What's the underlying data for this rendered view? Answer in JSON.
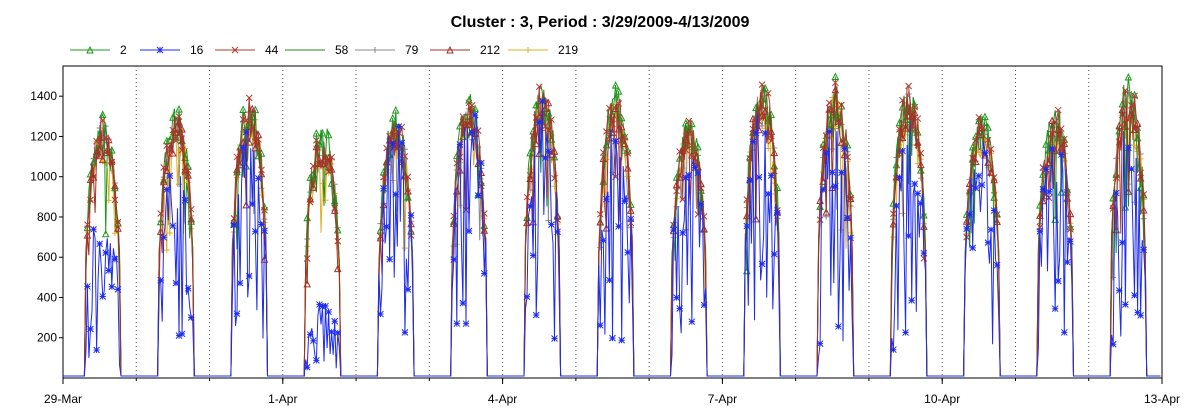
{
  "chart_data": {
    "type": "line",
    "title": "Cluster : 3, Period : 3/29/2009-4/13/2009",
    "xlabel": "",
    "ylabel": "",
    "ylim": [
      0,
      1550
    ],
    "yticks": [
      200,
      400,
      600,
      800,
      1000,
      1200,
      1400
    ],
    "xticks": [
      "29-Mar",
      "1-Apr",
      "4-Apr",
      "7-Apr",
      "10-Apr",
      "13-Apr"
    ],
    "x_range_days": [
      0,
      15
    ],
    "legend_position": "top",
    "grid": "vertical dotted at day boundaries",
    "daily_peaks": [
      {
        "day": "29-Mar",
        "peak": 1330,
        "low_series_peak": 880
      },
      {
        "day": "30-Mar",
        "peak": 1380,
        "low_series_peak": 1120
      },
      {
        "day": "31-Mar",
        "peak": 1430,
        "low_series_peak": 1260
      },
      {
        "day": "1-Apr",
        "peak": 1280,
        "low_series_peak": 400
      },
      {
        "day": "2-Apr",
        "peak": 1340,
        "low_series_peak": 1320
      },
      {
        "day": "3-Apr",
        "peak": 1420,
        "low_series_peak": 1430
      },
      {
        "day": "4-Apr",
        "peak": 1500,
        "low_series_peak": 1400
      },
      {
        "day": "5-Apr",
        "peak": 1460,
        "low_series_peak": 1300
      },
      {
        "day": "6-Apr",
        "peak": 1320,
        "low_series_peak": 1200
      },
      {
        "day": "7-Apr",
        "peak": 1520,
        "low_series_peak": 1350
      },
      {
        "day": "8-Apr",
        "peak": 1500,
        "low_series_peak": 1300
      },
      {
        "day": "9-Apr",
        "peak": 1480,
        "low_series_peak": 1300
      },
      {
        "day": "10-Apr",
        "peak": 1340,
        "low_series_peak": 1200
      },
      {
        "day": "11-Apr",
        "peak": 1380,
        "low_series_peak": 1250
      },
      {
        "day": "12-Apr",
        "peak": 1500,
        "low_series_peak": 1280
      }
    ],
    "series": [
      {
        "name": "2",
        "color": "#1a9a1a",
        "marker": "triangle"
      },
      {
        "name": "16",
        "color": "#1e2cf0",
        "marker": "asterisk"
      },
      {
        "name": "44",
        "color": "#b03a2e",
        "marker": "x"
      },
      {
        "name": "58",
        "color": "#1f8a1f",
        "marker": "none"
      },
      {
        "name": "79",
        "color": "#8a8a8a",
        "marker": "plus"
      },
      {
        "name": "212",
        "color": "#a4302a",
        "marker": "triangle"
      },
      {
        "name": "219",
        "color": "#e3b020",
        "marker": "plus"
      }
    ]
  }
}
